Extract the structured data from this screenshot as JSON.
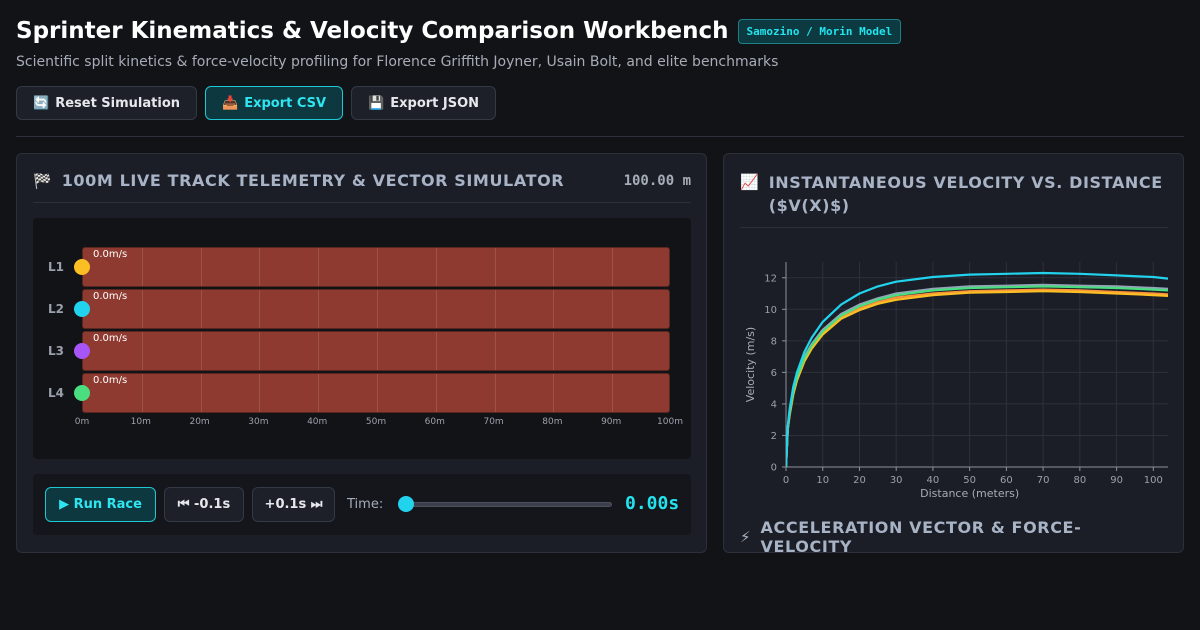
{
  "header": {
    "title": "Sprinter Kinematics & Velocity Comparison Workbench",
    "badge": "Samozino / Morin Model",
    "subtitle": "Scientific split kinetics & force-velocity profiling for Florence Griffith Joyner, Usain Bolt, and elite benchmarks"
  },
  "toolbar": {
    "reset_icon": "🔄",
    "reset_label": "Reset Simulation",
    "export_csv_icon": "📥",
    "export_csv_label": "Export CSV",
    "export_json_icon": "💾",
    "export_json_label": "Export JSON"
  },
  "track_panel": {
    "icon": "🏁",
    "title": "100M Live Track Telemetry & Vector Simulator",
    "distance_readout": "100.00 m",
    "lanes": [
      {
        "label": "L1",
        "speed": "0.0m/s",
        "color": "#fbbf24",
        "position_m": 0
      },
      {
        "label": "L2",
        "speed": "0.0m/s",
        "color": "#22d3ee",
        "position_m": 0
      },
      {
        "label": "L3",
        "speed": "0.0m/s",
        "color": "#a855f7",
        "position_m": 0
      },
      {
        "label": "L4",
        "speed": "0.0m/s",
        "color": "#4ade80",
        "position_m": 0
      }
    ],
    "distance_ticks": [
      "0m",
      "10m",
      "20m",
      "30m",
      "40m",
      "50m",
      "60m",
      "70m",
      "80m",
      "90m",
      "100m"
    ],
    "lane_color": "#8e3a30"
  },
  "controls": {
    "run_label": "▶ Run Race",
    "back_label": "⏮ -0.1s",
    "forward_label": "+0.1s ⏭",
    "time_label": "Time:",
    "time_value": "0.00s",
    "time_fraction": 0
  },
  "velocity_panel": {
    "icon": "📈",
    "title": "Instantaneous Velocity vs. Distance ($V(X)$)"
  },
  "chart_data": {
    "type": "line",
    "title": "",
    "xlabel": "Distance (meters)",
    "ylabel": "Velocity (m/s)",
    "xlim": [
      0,
      104
    ],
    "ylim": [
      0,
      13
    ],
    "xticks": [
      0,
      10,
      20,
      30,
      40,
      50,
      60,
      70,
      80,
      90,
      100
    ],
    "yticks": [
      0,
      2,
      4,
      6,
      8,
      10,
      12
    ],
    "grid": true,
    "series": [
      {
        "color": "#22d3ee",
        "x": [
          0,
          0.5,
          1,
          2,
          3,
          5,
          7,
          10,
          15,
          20,
          25,
          30,
          40,
          50,
          60,
          70,
          80,
          90,
          100,
          104
        ],
        "y": [
          0,
          2.6,
          3.7,
          5.1,
          6.0,
          7.3,
          8.2,
          9.2,
          10.3,
          11.0,
          11.45,
          11.75,
          12.05,
          12.2,
          12.25,
          12.3,
          12.25,
          12.15,
          12.05,
          11.95
        ]
      },
      {
        "color": "#94a3b8",
        "x": [
          0,
          0.5,
          1,
          2,
          3,
          5,
          7,
          10,
          15,
          20,
          25,
          30,
          40,
          50,
          60,
          70,
          80,
          90,
          100,
          104
        ],
        "y": [
          0,
          2.5,
          3.5,
          4.9,
          5.8,
          7.0,
          7.8,
          8.7,
          9.7,
          10.3,
          10.7,
          11.0,
          11.3,
          11.45,
          11.5,
          11.55,
          11.5,
          11.45,
          11.35,
          11.3
        ]
      },
      {
        "color": "#4ade80",
        "x": [
          0,
          0.5,
          1,
          2,
          3,
          5,
          7,
          10,
          15,
          20,
          25,
          30,
          40,
          50,
          60,
          70,
          80,
          90,
          100,
          104
        ],
        "y": [
          0,
          2.5,
          3.5,
          4.8,
          5.7,
          6.9,
          7.7,
          8.6,
          9.6,
          10.2,
          10.6,
          10.9,
          11.2,
          11.35,
          11.4,
          11.45,
          11.4,
          11.35,
          11.25,
          11.2
        ]
      },
      {
        "color": "#fb923c",
        "x": [
          0,
          0.5,
          1,
          2,
          3,
          5,
          7,
          10,
          15,
          20,
          25,
          30,
          40,
          50,
          60,
          70,
          80,
          90,
          100,
          104
        ],
        "y": [
          0,
          2.4,
          3.4,
          4.7,
          5.6,
          6.8,
          7.6,
          8.5,
          9.5,
          10.05,
          10.45,
          10.75,
          11.0,
          11.15,
          11.2,
          11.25,
          11.2,
          11.1,
          11.0,
          10.95
        ]
      },
      {
        "color": "#fbbf24",
        "x": [
          0,
          0.5,
          1,
          2,
          3,
          5,
          7,
          10,
          15,
          20,
          25,
          30,
          40,
          50,
          60,
          70,
          80,
          90,
          100,
          104
        ],
        "y": [
          0,
          2.4,
          3.3,
          4.6,
          5.5,
          6.7,
          7.5,
          8.4,
          9.4,
          9.95,
          10.35,
          10.6,
          10.9,
          11.05,
          11.1,
          11.15,
          11.1,
          11.0,
          10.9,
          10.85
        ]
      }
    ]
  },
  "accel_panel": {
    "icon": "⚡",
    "title": "Acceleration Vector & Force-Velocity"
  }
}
